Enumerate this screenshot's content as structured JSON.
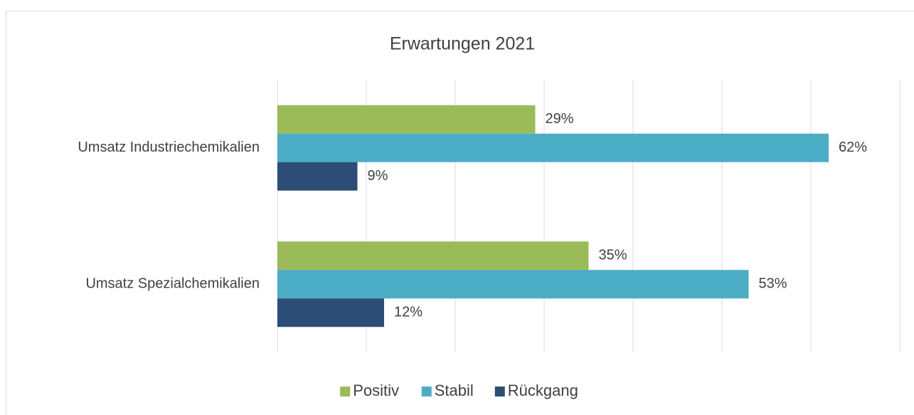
{
  "chart_data": {
    "type": "bar",
    "orientation": "horizontal",
    "title": "Erwartungen 2021",
    "categories": [
      "Umsatz Industriechemikalien",
      "Umsatz Spezialchemikalien"
    ],
    "series": [
      {
        "name": "Positiv",
        "color": "#9bbb59",
        "values": [
          29,
          35
        ],
        "value_labels": [
          "29%",
          "35%"
        ]
      },
      {
        "name": "Stabil",
        "color": "#4bacc6",
        "values": [
          62,
          53
        ],
        "value_labels": [
          "62%",
          "53%"
        ]
      },
      {
        "name": "Rückgang",
        "color": "#2c4d75",
        "values": [
          9,
          12
        ],
        "value_labels": [
          "9%",
          "12%"
        ]
      }
    ],
    "xlim": [
      0,
      70
    ],
    "xticks": [
      0,
      10,
      20,
      30,
      40,
      50,
      60,
      70
    ],
    "grid": true,
    "legend": "bottom"
  }
}
